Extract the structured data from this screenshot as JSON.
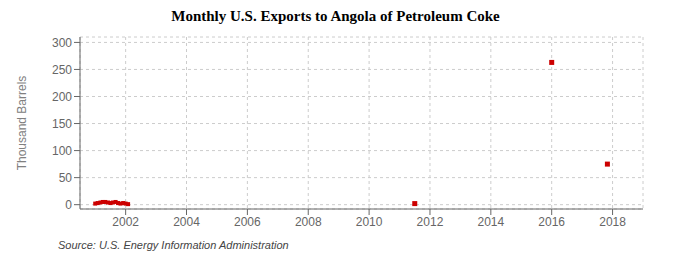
{
  "chart_data": {
    "type": "line",
    "title": "Monthly U.S. Exports to Angola of Petroleum Coke",
    "ylabel": "Thousand Barrels",
    "annotation": "Source: U.S. Energy Information Administration",
    "color": "#cc0000",
    "marker": "square",
    "grid": true,
    "xlim": [
      2000.5,
      2019.0
    ],
    "ylim": [
      -8,
      310
    ],
    "xticks": [
      2002,
      2004,
      2006,
      2008,
      2010,
      2012,
      2014,
      2016,
      2018
    ],
    "yticks": [
      0,
      50,
      100,
      150,
      200,
      250,
      300
    ],
    "series": [
      {
        "x": [
          2001.0,
          2001.08,
          2001.17,
          2001.25,
          2001.33,
          2001.42,
          2001.5,
          2001.58,
          2001.67,
          2001.75,
          2001.83,
          2001.92,
          2002.0,
          2002.08
        ],
        "values": [
          2,
          3,
          4,
          5,
          5,
          4,
          3,
          4,
          5,
          3,
          2,
          3,
          2,
          1
        ]
      },
      {
        "x": [
          2011.5
        ],
        "values": [
          2
        ]
      },
      {
        "x": [
          2016.0
        ],
        "values": [
          263
        ]
      },
      {
        "x": [
          2017.83
        ],
        "values": [
          75
        ]
      }
    ]
  }
}
